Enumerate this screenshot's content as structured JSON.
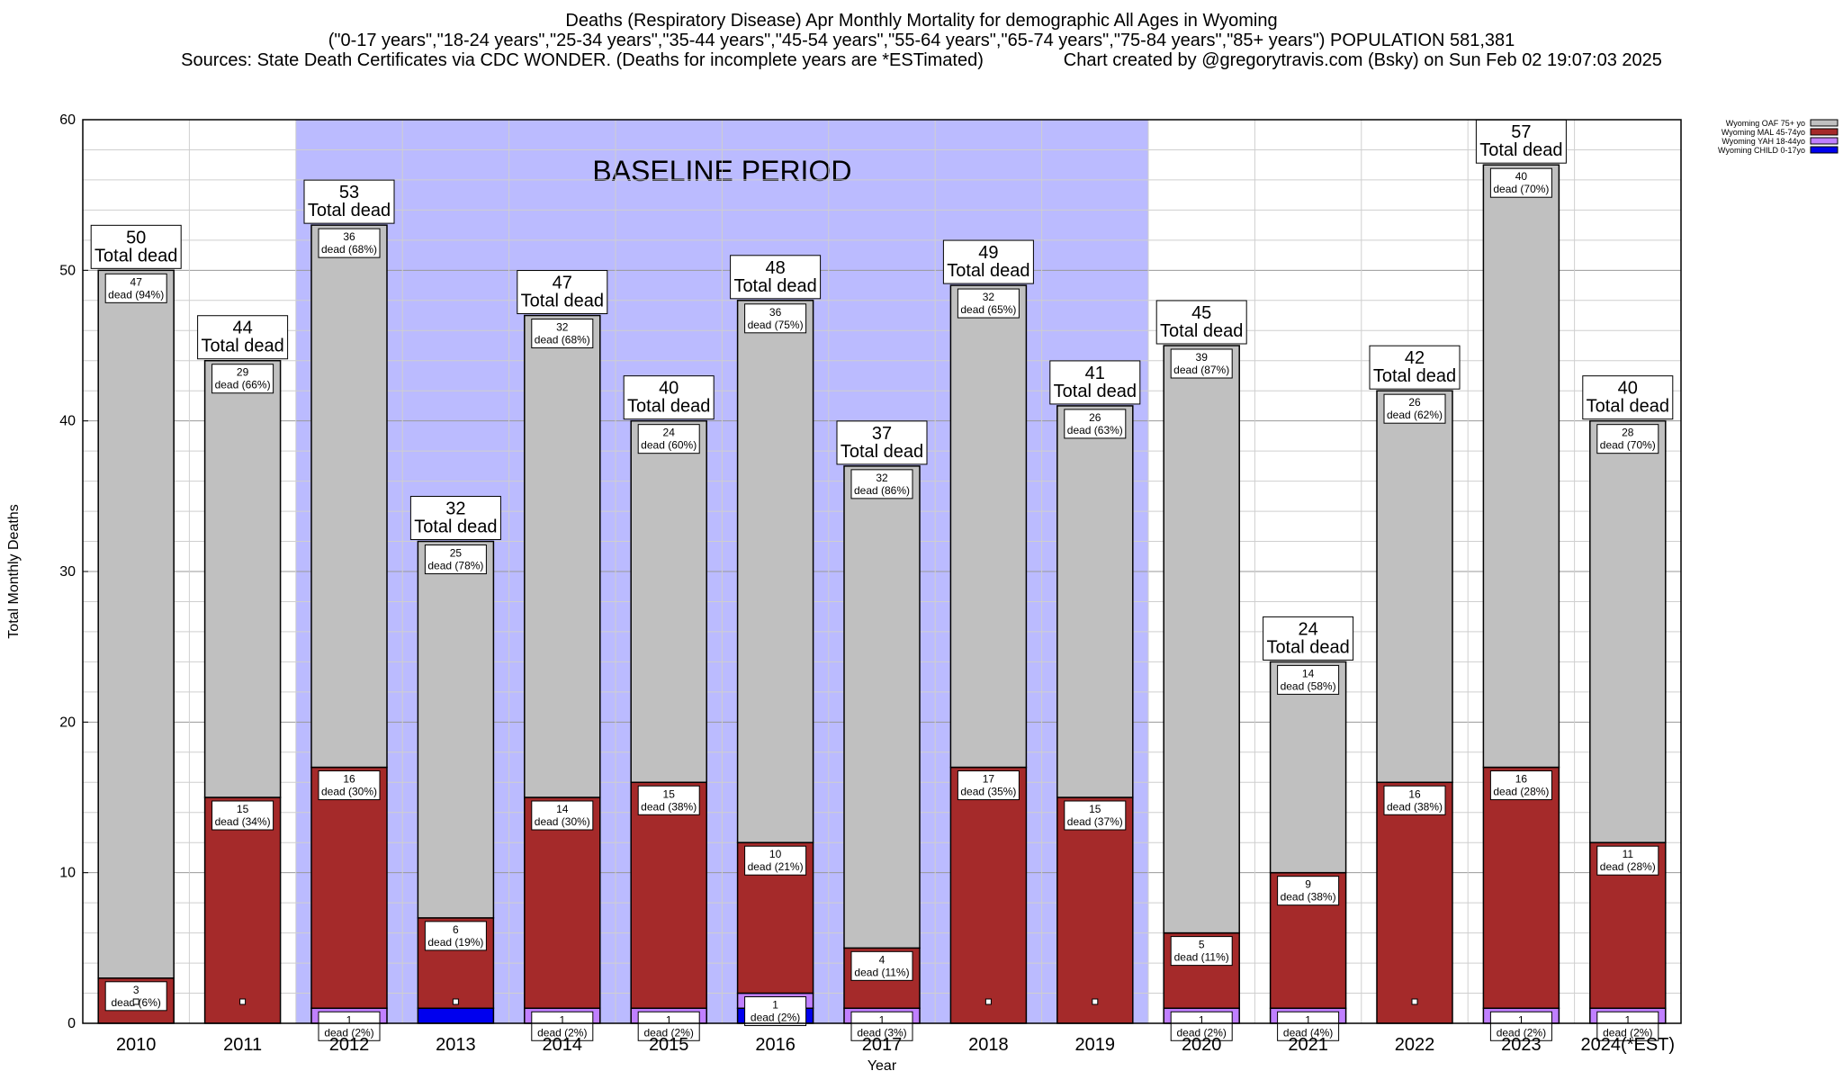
{
  "title": {
    "line1": "Deaths (Respiratory Disease) Apr Monthly Mortality for demographic All Ages in Wyoming",
    "line2": "(\"0-17 years\",\"18-24 years\",\"25-34 years\",\"35-44 years\",\"45-54 years\",\"55-64 years\",\"65-74 years\",\"75-84 years\",\"85+ years\") POPULATION 581,381",
    "line3": "Sources: State Death Certificates via CDC WONDER. (Deaths for incomplete years are *ESTimated)                Chart created by @gregorytravis.com (Bsky) on Sun Feb 02 19:07:03 2025"
  },
  "chart_data": {
    "type": "bar",
    "stacked": true,
    "xlabel": "Year",
    "ylabel": "Total Monthly Deaths",
    "ylim": [
      0,
      60
    ],
    "yticks": [
      0,
      10,
      20,
      30,
      40,
      50,
      60
    ],
    "grid": true,
    "legend_position": "top-right",
    "categories": [
      "2010",
      "2011",
      "2012",
      "2013",
      "2014",
      "2015",
      "2016",
      "2017",
      "2018",
      "2019",
      "2020",
      "2021",
      "2022",
      "2023",
      "2024(*EST)"
    ],
    "baseline": {
      "label": "BASELINE PERIOD",
      "from": "2012",
      "to": "2019",
      "color": "#bbbbff"
    },
    "series": [
      {
        "name": "Wyoming CHILD 0-17yo",
        "color": "#0000ee",
        "values": [
          0,
          0,
          0,
          1,
          0,
          0,
          1,
          0,
          0,
          0,
          0,
          0,
          0,
          0,
          0
        ]
      },
      {
        "name": "Wyoming YAH 18-44yo",
        "color": "#c080ff",
        "values": [
          0,
          0,
          1,
          0,
          1,
          1,
          1,
          1,
          0,
          0,
          1,
          1,
          0,
          1,
          1
        ]
      },
      {
        "name": "Wyoming MAL 45-74yo",
        "color": "#a52a2a",
        "values": [
          3,
          15,
          16,
          6,
          14,
          15,
          10,
          4,
          17,
          15,
          5,
          9,
          16,
          16,
          11
        ]
      },
      {
        "name": "Wyoming OAF 75+ yo",
        "color": "#c0c0c0",
        "values": [
          47,
          29,
          36,
          25,
          32,
          24,
          36,
          32,
          32,
          26,
          39,
          14,
          26,
          40,
          28
        ]
      }
    ],
    "totals": [
      50,
      44,
      53,
      32,
      47,
      40,
      48,
      37,
      49,
      41,
      45,
      24,
      42,
      57,
      40
    ],
    "segment_labels": {
      "Wyoming YAH 18-44yo": [
        "",
        "",
        "1\ndead (2%)",
        "",
        "1\ndead (2%)",
        "1\ndead (2%)",
        "1\ndead (2%)",
        "1\ndead (3%)",
        "",
        "",
        "1\ndead (2%)",
        "1\ndead (4%)",
        "",
        "1\ndead (2%)",
        "1\ndead (2%)"
      ],
      "Wyoming MAL 45-74yo": [
        "3\ndead (6%)",
        "15\ndead (34%)",
        "16\ndead (30%)",
        "6\ndead (19%)",
        "14\ndead (30%)",
        "15\ndead (38%)",
        "10\ndead (21%)",
        "4\ndead (11%)",
        "17\ndead (35%)",
        "15\ndead (37%)",
        "5\ndead (11%)",
        "9\ndead (38%)",
        "16\ndead (38%)",
        "16\ndead (28%)",
        "11\ndead (28%)"
      ],
      "Wyoming OAF 75+ yo": [
        "47\ndead (94%)",
        "29\ndead (66%)",
        "36\ndead (68%)",
        "25\ndead (78%)",
        "32\ndead (68%)",
        "24\ndead (60%)",
        "36\ndead (75%)",
        "32\ndead (86%)",
        "32\ndead (65%)",
        "26\ndead (63%)",
        "39\ndead (87%)",
        "14\ndead (58%)",
        "26\ndead (62%)",
        "40\ndead (70%)",
        "28\ndead (70%)"
      ]
    },
    "total_label_suffix": "Total dead"
  }
}
